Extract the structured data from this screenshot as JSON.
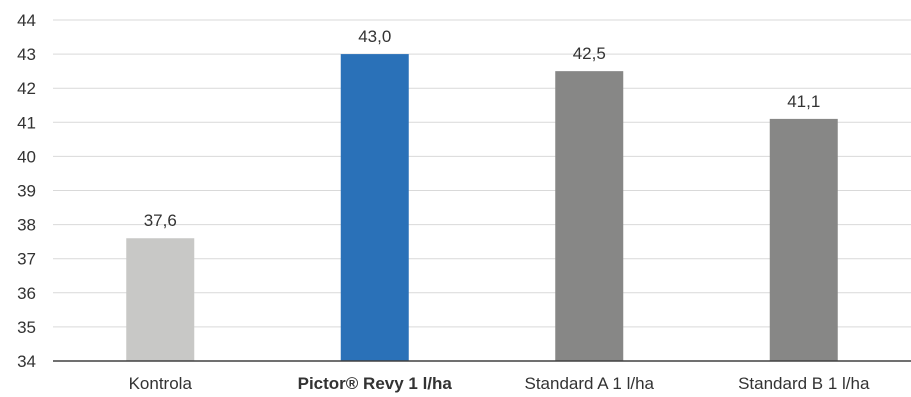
{
  "chart_data": {
    "type": "bar",
    "categories": [
      "Kontrola",
      "Pictor® Revy 1 l/ha",
      "Standard A 1 l/ha",
      "Standard B 1 l/ha"
    ],
    "category_emphasis": [
      false,
      true,
      false,
      false
    ],
    "values": [
      37.6,
      43.0,
      42.5,
      41.1
    ],
    "value_labels": [
      "37,6",
      "43,0",
      "42,5",
      "41,1"
    ],
    "colors": [
      "#c8c8c6",
      "#2a71b8",
      "#878786",
      "#878786"
    ],
    "ylim": [
      34,
      44
    ],
    "yticks": [
      34,
      35,
      36,
      37,
      38,
      39,
      40,
      41,
      42,
      43,
      44
    ],
    "grid": true,
    "title": "",
    "xlabel": "",
    "ylabel": ""
  }
}
